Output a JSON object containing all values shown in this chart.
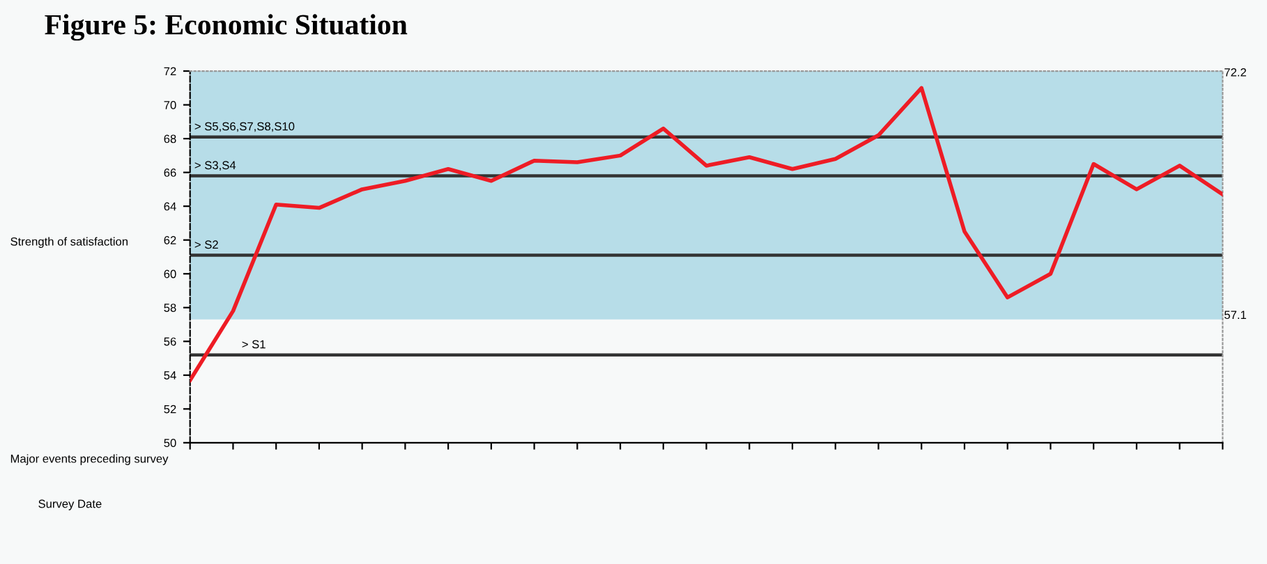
{
  "chart_data": {
    "type": "line",
    "title": "Figure 5: Economic Situation",
    "ylabel": "Strength of satisfaction",
    "categories": [
      null,
      null,
      null,
      null,
      null,
      null,
      null,
      null,
      null,
      null,
      null,
      null,
      null,
      null,
      null,
      null,
      null,
      null,
      null,
      null,
      null,
      null,
      null,
      null,
      null
    ],
    "series": [
      {
        "color": "#ee1c25",
        "values": [
          53.7,
          57.8,
          64.1,
          63.9,
          65.0,
          65.5,
          66.2,
          65.5,
          66.7,
          66.6,
          67.0,
          68.6,
          66.4,
          66.9,
          66.2,
          66.8,
          68.2,
          71.0,
          62.5,
          58.6,
          60.0,
          66.5,
          65.0,
          66.4,
          64.7
        ]
      }
    ],
    "ylim": [
      50,
      72
    ],
    "yticks": [
      50,
      52,
      54,
      56,
      58,
      60,
      62,
      64,
      66,
      68,
      70,
      72
    ],
    "ref_lines": [
      {
        "axis": "y",
        "value": 68.1,
        "label": "> S5,S6,S7,S8,S10",
        "color": "#333333"
      },
      {
        "axis": "y",
        "value": 65.8,
        "label": "> S3,S4",
        "color": "#333333"
      },
      {
        "axis": "y",
        "value": 61.1,
        "label": "> S2",
        "color": "#333333"
      },
      {
        "axis": "y",
        "value": 55.2,
        "label": "> S1",
        "color": "#333333"
      }
    ],
    "bands": [
      {
        "axis": "y",
        "from": 57.3,
        "to": 72,
        "color": "#b7dde8"
      }
    ],
    "annotations": [
      "Major events preceding survey",
      "Survey Date",
      "72.2",
      "57.1"
    ],
    "grid": false,
    "legend": false,
    "marker": "none",
    "line_style": "solid"
  }
}
